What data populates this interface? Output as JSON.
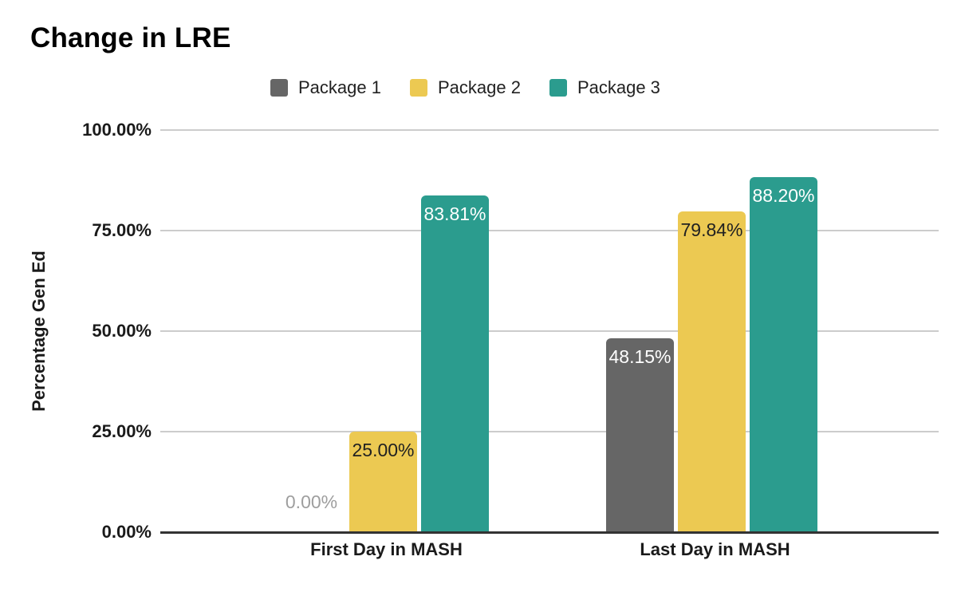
{
  "chart_data": {
    "type": "bar",
    "title": "Change in LRE",
    "xlabel": "",
    "ylabel": "Percentage Gen Ed",
    "categories": [
      "First Day in MASH",
      "Last Day in MASH"
    ],
    "series": [
      {
        "name": "Package 1",
        "color": "#666666",
        "values": [
          0.0,
          48.15
        ],
        "data_labels": [
          "0.00%",
          "48.15%"
        ],
        "label_text_color": "#ffffff"
      },
      {
        "name": "Package 2",
        "color": "#ECC952",
        "values": [
          25.0,
          79.84
        ],
        "data_labels": [
          "25.00%",
          "79.84%"
        ],
        "label_text_color": "#212121"
      },
      {
        "name": "Package 3",
        "color": "#2B9C8E",
        "values": [
          83.81,
          88.2
        ],
        "data_labels": [
          "83.81%",
          "88.20%"
        ],
        "label_text_color": "#ffffff"
      }
    ],
    "ylim": [
      0,
      100
    ],
    "yticks": [
      {
        "value": 0,
        "label": "0.00%"
      },
      {
        "value": 25,
        "label": "25.00%"
      },
      {
        "value": 50,
        "label": "50.00%"
      },
      {
        "value": 75,
        "label": "75.00%"
      },
      {
        "value": 100,
        "label": "100.00%"
      }
    ],
    "grid": true,
    "legend_position": "top",
    "zero_label_color": "#9e9e9e",
    "gridline_color": "#cccccc",
    "axis_line_color": "#333333"
  }
}
